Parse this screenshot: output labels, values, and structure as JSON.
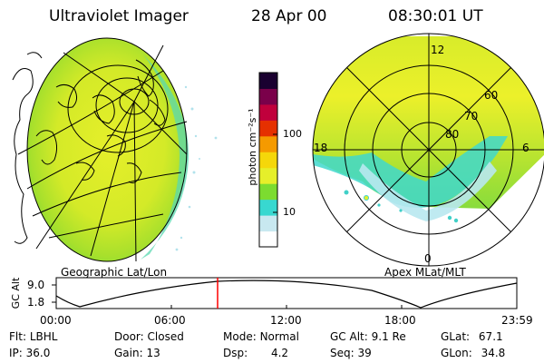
{
  "header": {
    "instrument": "Ultraviolet Imager",
    "date": "28 Apr 00",
    "time": "08:30:01 UT"
  },
  "left_panel": {
    "caption": "Geographic Lat/Lon"
  },
  "colorbar": {
    "unit_label": "photon cm⁻²s⁻¹",
    "scale": "log",
    "ticks": [
      "100",
      "10"
    ],
    "colors": [
      "#ffffff",
      "#c8e8f0",
      "#38d8d0",
      "#7cdc30",
      "#e6ef2a",
      "#f5d70a",
      "#f59a00",
      "#e53000",
      "#c0003c",
      "#7a004a",
      "#1a0030"
    ]
  },
  "right_panel": {
    "caption": "Apex MLat/MLT",
    "mlt_labels": {
      "top": "12",
      "left": "18",
      "right": "6",
      "bottom": "0"
    },
    "lat_labels": [
      "60",
      "70",
      "80"
    ]
  },
  "timeline": {
    "ylabel": "GC Alt",
    "yticks": [
      "9.0",
      "1.8"
    ],
    "time_ticks": [
      "00:00",
      "06:00",
      "12:00",
      "18:00",
      "23:59"
    ],
    "marker_color": "#ff0000"
  },
  "status": {
    "row1": [
      {
        "key": "Flt:",
        "value": "LBHL"
      },
      {
        "key": "Door:",
        "value": "Closed"
      },
      {
        "key": "Mode:",
        "value": "Normal"
      },
      {
        "key": "GC Alt:",
        "value": "9.1 Re"
      },
      {
        "key": "GLat:",
        "value": "67.1"
      }
    ],
    "row2": [
      {
        "key": "IP:",
        "value": "36.0"
      },
      {
        "key": "Gain:",
        "value": "13"
      },
      {
        "key": "Dsp:",
        "value": "4.2"
      },
      {
        "key": "Seq:",
        "value": "39"
      },
      {
        "key": "GLon:",
        "value": "34.8"
      }
    ]
  }
}
